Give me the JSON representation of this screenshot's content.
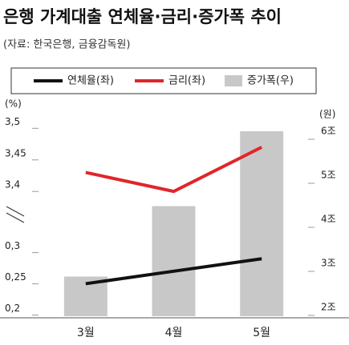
{
  "chart_data": {
    "type": "bar-line",
    "title": "은행 가계대출 연체율·금리·증가폭 추이",
    "subtitle": "(자료: 한국은행, 금융감독원)",
    "y_label": "(%)",
    "y2_label": "(원)",
    "categories": [
      "3월",
      "4월",
      "5월"
    ],
    "series": [
      {
        "name": "연체율(좌)",
        "color": "#111111",
        "kind": "line",
        "values": [
          0.24,
          0.26,
          0.28
        ]
      },
      {
        "name": "금리(좌)",
        "color": "#e0262b",
        "kind": "line",
        "values": [
          3.42,
          3.39,
          3.46
        ]
      },
      {
        "name": "증가폭(우)",
        "color": "#c8c8c8",
        "kind": "bar",
        "axis": "y2",
        "values": [
          2.7,
          4.3,
          6.0
        ]
      }
    ],
    "ylim": [
      0.188,
      3.527
    ],
    "axis_break": [
      0.32,
      3.38
    ],
    "yticks": [
      {
        "value": 0.2,
        "label": "0,2"
      },
      {
        "value": 0.25,
        "label": "0,25"
      },
      {
        "value": 0.3,
        "label": "0,3"
      },
      {
        "value": 3.4,
        "label": "3,4"
      },
      {
        "value": 3.45,
        "label": "3,45"
      },
      {
        "value": 3.5,
        "label": "3,5"
      }
    ],
    "y2lim": [
      1.8,
      6.6
    ],
    "y2ticks": [
      {
        "value": 2,
        "label": "2조"
      },
      {
        "value": 3,
        "label": "3조"
      },
      {
        "value": 4,
        "label": "4조"
      },
      {
        "value": 5,
        "label": "5조"
      },
      {
        "value": 6,
        "label": "6조"
      }
    ]
  }
}
